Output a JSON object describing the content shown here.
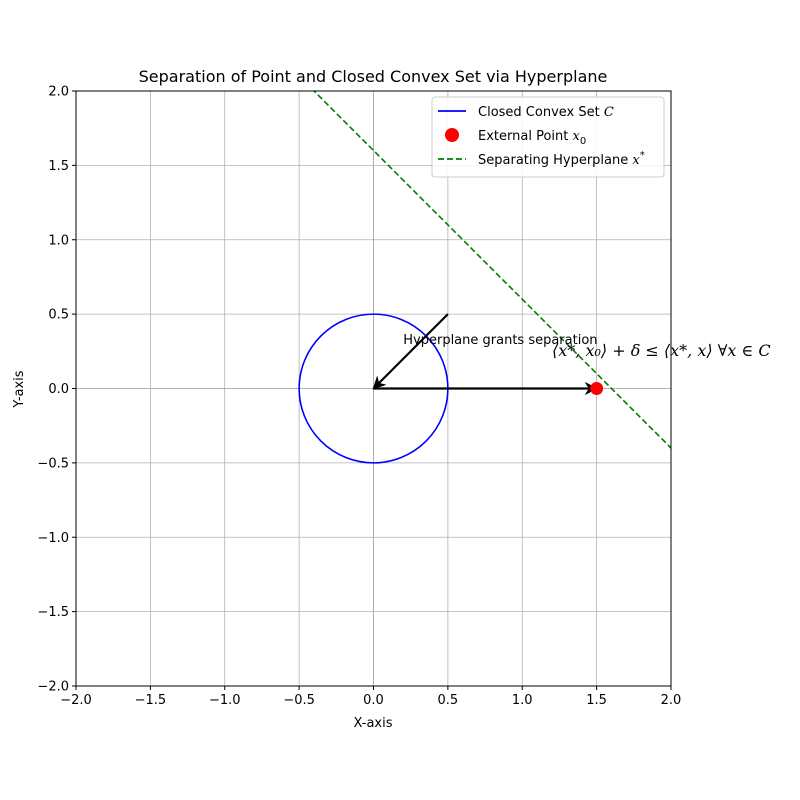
{
  "chart_data": {
    "type": "line",
    "title": "Separation of Point and Closed Convex Set via Hyperplane",
    "xlabel": "X-axis",
    "ylabel": "Y-axis",
    "xlim": [
      -2.0,
      2.0
    ],
    "ylim": [
      -2.0,
      2.0
    ],
    "aspect": "equal",
    "grid": true,
    "legend_position": "top-right",
    "x_ticks": [
      -2.0,
      -1.5,
      -1.0,
      -0.5,
      0.0,
      0.5,
      1.0,
      1.5,
      2.0
    ],
    "y_ticks": [
      -2.0,
      -1.5,
      -1.0,
      -0.5,
      0.0,
      0.5,
      1.0,
      1.5,
      2.0
    ],
    "x_tick_labels": [
      "−2.0",
      "−1.5",
      "−1.0",
      "−0.5",
      "0.0",
      "0.5",
      "1.0",
      "1.5",
      "2.0"
    ],
    "y_tick_labels": [
      "−2.0",
      "−1.5",
      "−1.0",
      "−0.5",
      "0.0",
      "0.5",
      "1.0",
      "1.5",
      "2.0"
    ],
    "reference_lines": {
      "x": 0,
      "y": 0,
      "color": "#808080",
      "style": "dotted"
    },
    "series": [
      {
        "name": "Closed Convex Set C",
        "kind": "circle",
        "center": [
          0,
          0
        ],
        "radius": 0.5,
        "color": "#0000ff",
        "line_style": "solid"
      },
      {
        "name": "External Point x0",
        "kind": "scatter",
        "points": [
          [
            1.5,
            0.0
          ]
        ],
        "color": "#ff0000"
      },
      {
        "name": "Separating Hyperplane x*",
        "kind": "line",
        "slope": -1,
        "intercept": 1.6,
        "color": "#008000",
        "line_style": "dashed"
      }
    ],
    "legend_entries": [
      {
        "label_main": "Closed Convex Set ",
        "label_math": "C",
        "label_sup": "",
        "marker": "line",
        "color": "#0000ff"
      },
      {
        "label_main": "External Point ",
        "label_math": "x",
        "label_sub": "0",
        "marker": "dot",
        "color": "#ff0000"
      },
      {
        "label_main": "Separating Hyperplane ",
        "label_math": "x",
        "label_sup": "*",
        "marker": "dashed",
        "color": "#008000"
      }
    ],
    "arrows": [
      {
        "from": [
          0.0,
          0.0
        ],
        "to": [
          1.5,
          0.0
        ],
        "color": "#000000"
      },
      {
        "from": [
          0.5,
          0.5
        ],
        "to": [
          0.0,
          0.0
        ],
        "color": "#000000"
      }
    ],
    "annotations": [
      {
        "text": "Hyperplane grants separation",
        "x": 0.2,
        "y": 0.3
      },
      {
        "text": "⟨x*, x₀⟩ + δ ≤ ⟨x*, x⟩   ∀x ∈ C",
        "x": 1.2,
        "y": 0.22,
        "style": "math"
      }
    ]
  }
}
